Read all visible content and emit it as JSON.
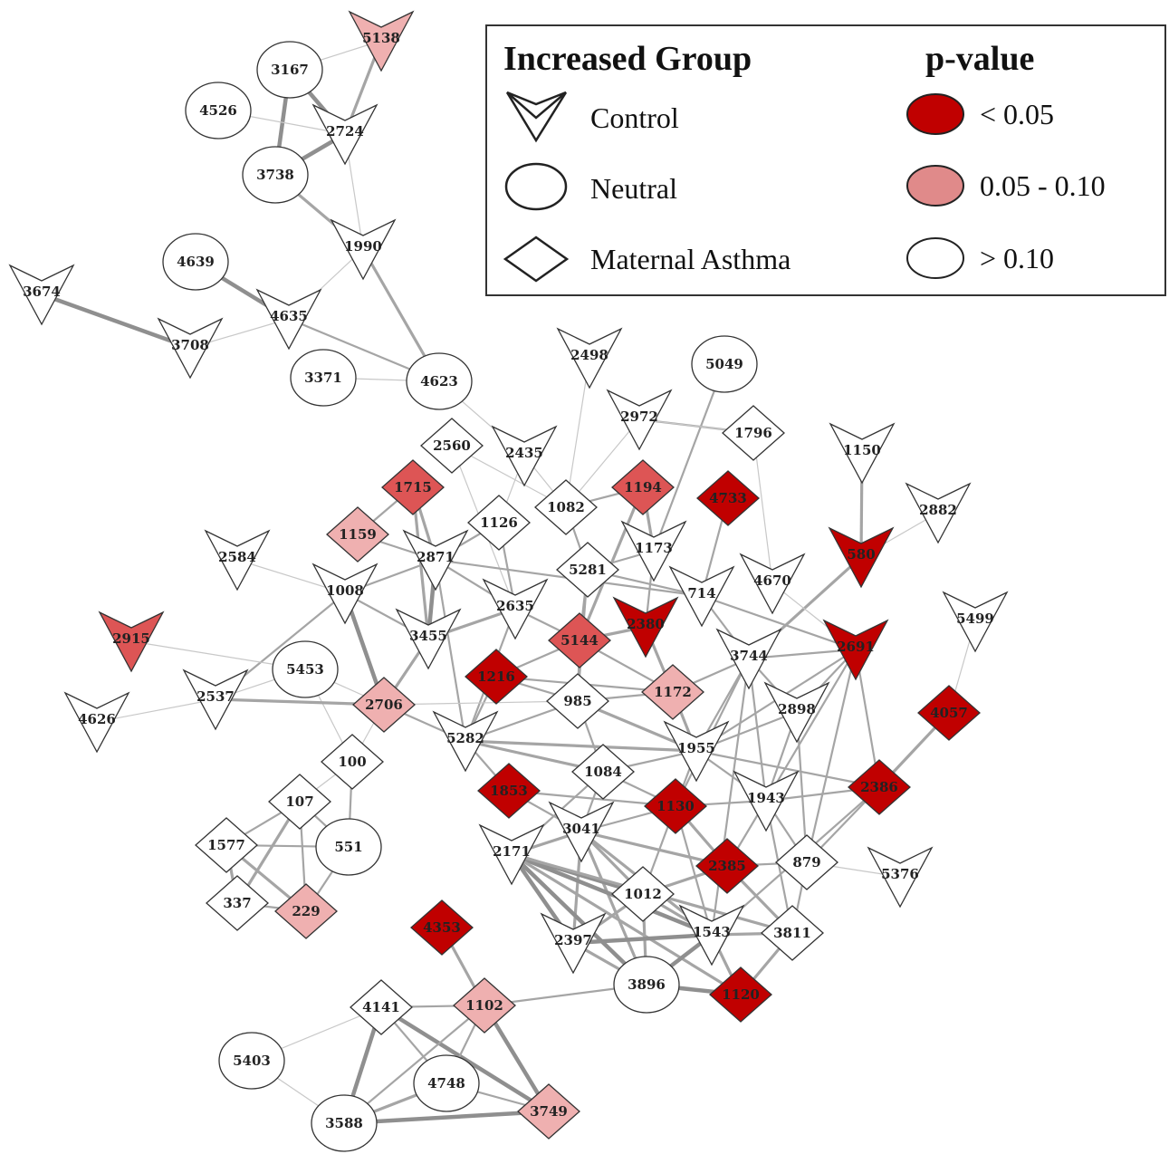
{
  "legend": {
    "group_title": "Increased Group",
    "pvalue_title": "p-value",
    "groups": [
      {
        "shape": "vee",
        "label": "Control"
      },
      {
        "shape": "circle",
        "label": "Neutral"
      },
      {
        "shape": "diamond",
        "label": "Maternal Asthma"
      }
    ],
    "pvalues": [
      {
        "level": "high",
        "color": "#c00000",
        "label": "< 0.05"
      },
      {
        "level": "mid",
        "color": "#e08a8a",
        "label": "0.05 - 0.10"
      },
      {
        "level": "none",
        "color": "#ffffff",
        "label": "> 0.10"
      }
    ]
  },
  "colors": {
    "high": "#c00000",
    "mid_strong": "#dd5555",
    "mid": "#efb0b0",
    "none": "#ffffff",
    "edge": "#999999"
  },
  "nodes": [
    {
      "id": "5138",
      "shape": "vee",
      "sig": "mid"
    },
    {
      "id": "3167",
      "shape": "circle",
      "sig": "none"
    },
    {
      "id": "4526",
      "shape": "circle",
      "sig": "none"
    },
    {
      "id": "2724",
      "shape": "vee",
      "sig": "none"
    },
    {
      "id": "3738",
      "shape": "circle",
      "sig": "none"
    },
    {
      "id": "1990",
      "shape": "vee",
      "sig": "none"
    },
    {
      "id": "4639",
      "shape": "circle",
      "sig": "none"
    },
    {
      "id": "4635",
      "shape": "vee",
      "sig": "none"
    },
    {
      "id": "3674",
      "shape": "vee",
      "sig": "none"
    },
    {
      "id": "3708",
      "shape": "vee",
      "sig": "none"
    },
    {
      "id": "3371",
      "shape": "circle",
      "sig": "none"
    },
    {
      "id": "4623",
      "shape": "circle",
      "sig": "none"
    },
    {
      "id": "2498",
      "shape": "vee",
      "sig": "none"
    },
    {
      "id": "5049",
      "shape": "circle",
      "sig": "none"
    },
    {
      "id": "2972",
      "shape": "vee",
      "sig": "none"
    },
    {
      "id": "1796",
      "shape": "diamond",
      "sig": "none"
    },
    {
      "id": "2560",
      "shape": "diamond",
      "sig": "none"
    },
    {
      "id": "2435",
      "shape": "vee",
      "sig": "none"
    },
    {
      "id": "1150",
      "shape": "vee",
      "sig": "none"
    },
    {
      "id": "1715",
      "shape": "diamond",
      "sig": "mid_strong"
    },
    {
      "id": "1194",
      "shape": "diamond",
      "sig": "mid_strong"
    },
    {
      "id": "4733",
      "shape": "diamond",
      "sig": "high"
    },
    {
      "id": "2882",
      "shape": "vee",
      "sig": "none"
    },
    {
      "id": "1082",
      "shape": "diamond",
      "sig": "none"
    },
    {
      "id": "1126",
      "shape": "diamond",
      "sig": "none"
    },
    {
      "id": "1159",
      "shape": "diamond",
      "sig": "mid"
    },
    {
      "id": "2584",
      "shape": "vee",
      "sig": "none"
    },
    {
      "id": "2871",
      "shape": "vee",
      "sig": "none"
    },
    {
      "id": "1173",
      "shape": "vee",
      "sig": "none"
    },
    {
      "id": "580",
      "shape": "vee",
      "sig": "high"
    },
    {
      "id": "5281",
      "shape": "diamond",
      "sig": "none"
    },
    {
      "id": "4670",
      "shape": "vee",
      "sig": "none"
    },
    {
      "id": "1008",
      "shape": "vee",
      "sig": "none"
    },
    {
      "id": "714",
      "shape": "vee",
      "sig": "none"
    },
    {
      "id": "2635",
      "shape": "vee",
      "sig": "none"
    },
    {
      "id": "2380",
      "shape": "vee",
      "sig": "high"
    },
    {
      "id": "5499",
      "shape": "vee",
      "sig": "none"
    },
    {
      "id": "2915",
      "shape": "vee",
      "sig": "mid_strong"
    },
    {
      "id": "3455",
      "shape": "vee",
      "sig": "none"
    },
    {
      "id": "5144",
      "shape": "diamond",
      "sig": "mid_strong"
    },
    {
      "id": "2691",
      "shape": "vee",
      "sig": "high"
    },
    {
      "id": "3744",
      "shape": "vee",
      "sig": "none"
    },
    {
      "id": "5453",
      "shape": "circle",
      "sig": "none"
    },
    {
      "id": "1216",
      "shape": "diamond",
      "sig": "high"
    },
    {
      "id": "2537",
      "shape": "vee",
      "sig": "none"
    },
    {
      "id": "985",
      "shape": "diamond",
      "sig": "none"
    },
    {
      "id": "1172",
      "shape": "diamond",
      "sig": "mid"
    },
    {
      "id": "2706",
      "shape": "diamond",
      "sig": "mid"
    },
    {
      "id": "4057",
      "shape": "diamond",
      "sig": "high"
    },
    {
      "id": "4626",
      "shape": "vee",
      "sig": "none"
    },
    {
      "id": "2898",
      "shape": "vee",
      "sig": "none"
    },
    {
      "id": "5282",
      "shape": "vee",
      "sig": "none"
    },
    {
      "id": "100",
      "shape": "diamond",
      "sig": "none"
    },
    {
      "id": "1955",
      "shape": "vee",
      "sig": "none"
    },
    {
      "id": "1084",
      "shape": "diamond",
      "sig": "none"
    },
    {
      "id": "2386",
      "shape": "diamond",
      "sig": "high"
    },
    {
      "id": "1853",
      "shape": "diamond",
      "sig": "high"
    },
    {
      "id": "107",
      "shape": "diamond",
      "sig": "none"
    },
    {
      "id": "1130",
      "shape": "diamond",
      "sig": "high"
    },
    {
      "id": "1943",
      "shape": "vee",
      "sig": "none"
    },
    {
      "id": "1577",
      "shape": "diamond",
      "sig": "none"
    },
    {
      "id": "551",
      "shape": "circle",
      "sig": "none"
    },
    {
      "id": "3041",
      "shape": "vee",
      "sig": "none"
    },
    {
      "id": "2171",
      "shape": "vee",
      "sig": "none"
    },
    {
      "id": "2385",
      "shape": "diamond",
      "sig": "high"
    },
    {
      "id": "879",
      "shape": "diamond",
      "sig": "none"
    },
    {
      "id": "5376",
      "shape": "vee",
      "sig": "none"
    },
    {
      "id": "337",
      "shape": "diamond",
      "sig": "none"
    },
    {
      "id": "229",
      "shape": "diamond",
      "sig": "mid"
    },
    {
      "id": "1012",
      "shape": "diamond",
      "sig": "none"
    },
    {
      "id": "4353",
      "shape": "diamond",
      "sig": "high"
    },
    {
      "id": "2397",
      "shape": "vee",
      "sig": "none"
    },
    {
      "id": "1543",
      "shape": "vee",
      "sig": "none"
    },
    {
      "id": "3811",
      "shape": "diamond",
      "sig": "none"
    },
    {
      "id": "3896",
      "shape": "circle",
      "sig": "none"
    },
    {
      "id": "1120",
      "shape": "diamond",
      "sig": "high"
    },
    {
      "id": "4141",
      "shape": "diamond",
      "sig": "none"
    },
    {
      "id": "1102",
      "shape": "diamond",
      "sig": "mid"
    },
    {
      "id": "5403",
      "shape": "circle",
      "sig": "none"
    },
    {
      "id": "4748",
      "shape": "circle",
      "sig": "none"
    },
    {
      "id": "3749",
      "shape": "diamond",
      "sig": "mid"
    },
    {
      "id": "3588",
      "shape": "circle",
      "sig": "none"
    }
  ],
  "edges": [
    [
      "5138",
      "3167",
      1
    ],
    [
      "5138",
      "2724",
      3
    ],
    [
      "3167",
      "2724",
      4
    ],
    [
      "3167",
      "3738",
      4
    ],
    [
      "4526",
      "2724",
      1
    ],
    [
      "3738",
      "2724",
      4
    ],
    [
      "3738",
      "1990",
      3
    ],
    [
      "2724",
      "1990",
      1
    ],
    [
      "4639",
      "4635",
      4
    ],
    [
      "3674",
      "3708",
      4
    ],
    [
      "3708",
      "4635",
      1
    ],
    [
      "4635",
      "1990",
      1
    ],
    [
      "1990",
      "4623",
      3
    ],
    [
      "4635",
      "4623",
      2
    ],
    [
      "3371",
      "4623",
      1
    ],
    [
      "4623",
      "2435",
      1
    ],
    [
      "2498",
      "1082",
      1
    ],
    [
      "5049",
      "1173",
      2
    ],
    [
      "2972",
      "1796",
      2
    ],
    [
      "2972",
      "1082",
      1
    ],
    [
      "1796",
      "4670",
      1
    ],
    [
      "2560",
      "2635",
      1
    ],
    [
      "2435",
      "1126",
      1
    ],
    [
      "1150",
      "580",
      3
    ],
    [
      "1715",
      "2871",
      3
    ],
    [
      "1715",
      "3455",
      3
    ],
    [
      "1194",
      "1082",
      2
    ],
    [
      "1194",
      "5144",
      3
    ],
    [
      "1194",
      "1173",
      3
    ],
    [
      "4733",
      "714",
      2
    ],
    [
      "1082",
      "5281",
      2
    ],
    [
      "1082",
      "2435",
      1
    ],
    [
      "1126",
      "2871",
      2
    ],
    [
      "1126",
      "2635",
      2
    ],
    [
      "1159",
      "1715",
      2
    ],
    [
      "1159",
      "2871",
      2
    ],
    [
      "2584",
      "1008",
      1
    ],
    [
      "1008",
      "2871",
      2
    ],
    [
      "1008",
      "3455",
      2
    ],
    [
      "1008",
      "2706",
      4
    ],
    [
      "1008",
      "2537",
      2
    ],
    [
      "2871",
      "3455",
      4
    ],
    [
      "2871",
      "5282",
      2
    ],
    [
      "2871",
      "2635",
      2
    ],
    [
      "2871",
      "714",
      2
    ],
    [
      "5281",
      "714",
      2
    ],
    [
      "5281",
      "5144",
      2
    ],
    [
      "5281",
      "1173",
      2
    ],
    [
      "5281",
      "985",
      2
    ],
    [
      "580",
      "3744",
      3
    ],
    [
      "580",
      "2882",
      1
    ],
    [
      "714",
      "2691",
      2
    ],
    [
      "714",
      "3744",
      2
    ],
    [
      "2635",
      "5144",
      2
    ],
    [
      "2635",
      "5282",
      2
    ],
    [
      "3455",
      "2706",
      3
    ],
    [
      "3455",
      "2635",
      3
    ],
    [
      "2380",
      "1172",
      3
    ],
    [
      "2380",
      "5144",
      3
    ],
    [
      "2380",
      "1173",
      2
    ],
    [
      "5499",
      "4057",
      1
    ],
    [
      "2915",
      "5453",
      1
    ],
    [
      "5144",
      "985",
      2
    ],
    [
      "5144",
      "1216",
      2
    ],
    [
      "5144",
      "1172",
      2
    ],
    [
      "2691",
      "3744",
      2
    ],
    [
      "2691",
      "2898",
      2
    ],
    [
      "2691",
      "2386",
      2
    ],
    [
      "2691",
      "1955",
      2
    ],
    [
      "2691",
      "1943",
      2
    ],
    [
      "2691",
      "879",
      2
    ],
    [
      "3744",
      "1955",
      2
    ],
    [
      "3744",
      "1943",
      2
    ],
    [
      "3744",
      "2898",
      2
    ],
    [
      "3744",
      "1130",
      2
    ],
    [
      "3744",
      "1543",
      2
    ],
    [
      "5453",
      "2706",
      1
    ],
    [
      "5453",
      "100",
      1
    ],
    [
      "1216",
      "985",
      2
    ],
    [
      "1216",
      "5282",
      2
    ],
    [
      "1216",
      "1172",
      2
    ],
    [
      "2537",
      "2706",
      3
    ],
    [
      "2537",
      "4626",
      1
    ],
    [
      "2537",
      "5453",
      1
    ],
    [
      "985",
      "1172",
      2
    ],
    [
      "985",
      "1955",
      3
    ],
    [
      "985",
      "5282",
      2
    ],
    [
      "985",
      "1084",
      2
    ],
    [
      "985",
      "2706",
      1
    ],
    [
      "1172",
      "1955",
      3
    ],
    [
      "1172",
      "3744",
      2
    ],
    [
      "2706",
      "5282",
      2
    ],
    [
      "2706",
      "100",
      1
    ],
    [
      "4057",
      "2386",
      3
    ],
    [
      "2898",
      "1955",
      2
    ],
    [
      "2898",
      "1943",
      2
    ],
    [
      "2898",
      "879",
      2
    ],
    [
      "5282",
      "1955",
      3
    ],
    [
      "5282",
      "1084",
      3
    ],
    [
      "5282",
      "1853",
      2
    ],
    [
      "100",
      "107",
      1
    ],
    [
      "100",
      "551",
      2
    ],
    [
      "1955",
      "1943",
      2
    ],
    [
      "1955",
      "1130",
      2
    ],
    [
      "1955",
      "2386",
      2
    ],
    [
      "1955",
      "1084",
      2
    ],
    [
      "1084",
      "1130",
      2
    ],
    [
      "1084",
      "3041",
      2
    ],
    [
      "1084",
      "2171",
      2
    ],
    [
      "2386",
      "1943",
      2
    ],
    [
      "2386",
      "879",
      2
    ],
    [
      "2386",
      "1543",
      2
    ],
    [
      "1853",
      "1130",
      2
    ],
    [
      "1853",
      "3041",
      2
    ],
    [
      "107",
      "1577",
      2
    ],
    [
      "107",
      "551",
      2
    ],
    [
      "107",
      "337",
      3
    ],
    [
      "107",
      "229",
      2
    ],
    [
      "1130",
      "2385",
      3
    ],
    [
      "1130",
      "3041",
      2
    ],
    [
      "1130",
      "1012",
      2
    ],
    [
      "1130",
      "1943",
      2
    ],
    [
      "1130",
      "1543",
      2
    ],
    [
      "1943",
      "879",
      2
    ],
    [
      "1943",
      "2385",
      2
    ],
    [
      "1943",
      "3811",
      2
    ],
    [
      "1577",
      "337",
      3
    ],
    [
      "1577",
      "229",
      3
    ],
    [
      "1577",
      "551",
      2
    ],
    [
      "551",
      "229",
      2
    ],
    [
      "3041",
      "2171",
      3
    ],
    [
      "3041",
      "1012",
      3
    ],
    [
      "3041",
      "2397",
      3
    ],
    [
      "3041",
      "1543",
      3
    ],
    [
      "3041",
      "3896",
      3
    ],
    [
      "3041",
      "2385",
      3
    ],
    [
      "2171",
      "1012",
      4
    ],
    [
      "2171",
      "2397",
      4
    ],
    [
      "2171",
      "1543",
      4
    ],
    [
      "2171",
      "3896",
      4
    ],
    [
      "2171",
      "3811",
      3
    ],
    [
      "2171",
      "1120",
      3
    ],
    [
      "2385",
      "879",
      2
    ],
    [
      "2385",
      "3811",
      3
    ],
    [
      "2385",
      "1012",
      3
    ],
    [
      "879",
      "5376",
      1
    ],
    [
      "879",
      "3811",
      2
    ],
    [
      "337",
      "229",
      2
    ],
    [
      "1012",
      "2397",
      3
    ],
    [
      "1012",
      "1543",
      3
    ],
    [
      "1012",
      "3896",
      3
    ],
    [
      "4353",
      "1102",
      3
    ],
    [
      "2397",
      "1543",
      4
    ],
    [
      "2397",
      "3896",
      3
    ],
    [
      "1543",
      "3811",
      3
    ],
    [
      "1543",
      "3896",
      4
    ],
    [
      "1543",
      "1120",
      3
    ],
    [
      "3811",
      "1120",
      3
    ],
    [
      "3896",
      "1120",
      4
    ],
    [
      "3896",
      "1102",
      2
    ],
    [
      "4141",
      "1102",
      2
    ],
    [
      "4141",
      "5403",
      1
    ],
    [
      "4141",
      "3588",
      4
    ],
    [
      "4141",
      "3749",
      4
    ],
    [
      "4141",
      "4748",
      2
    ],
    [
      "1102",
      "3749",
      4
    ],
    [
      "1102",
      "4748",
      2
    ],
    [
      "1102",
      "3588",
      2
    ],
    [
      "5403",
      "3588",
      1
    ],
    [
      "4748",
      "3588",
      3
    ],
    [
      "3588",
      "3749",
      4
    ],
    [
      "4748",
      "3749",
      2
    ],
    [
      "2560",
      "1082",
      1
    ],
    [
      "1796",
      "2972",
      1
    ],
    [
      "4670",
      "2691",
      1
    ]
  ]
}
